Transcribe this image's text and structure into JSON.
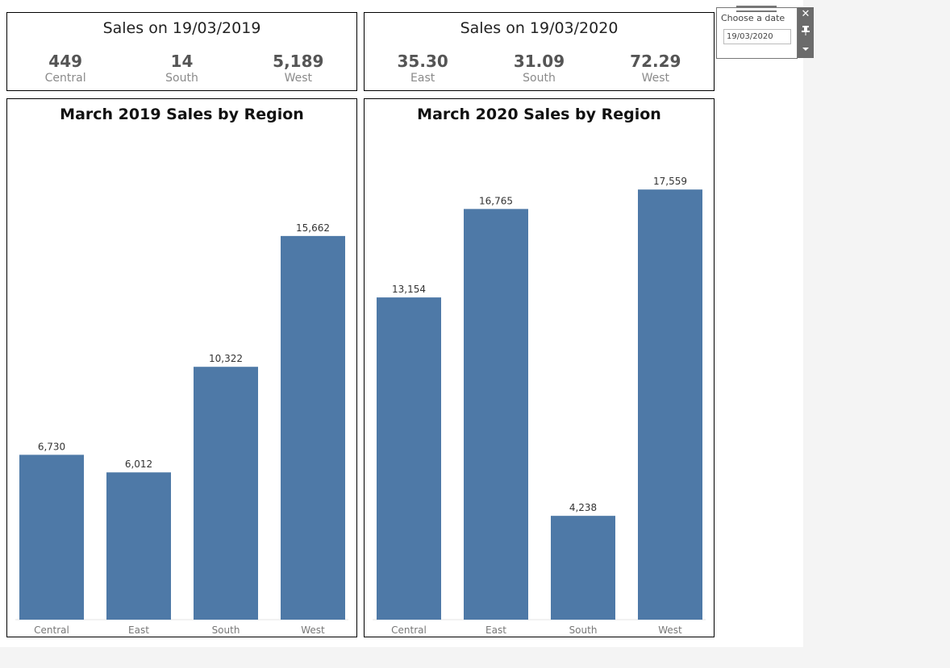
{
  "kpi": [
    {
      "title": "Sales on 19/03/2019",
      "items": [
        {
          "value": "449",
          "label": "Central"
        },
        {
          "value": "14",
          "label": "South"
        },
        {
          "value": "5,189",
          "label": "West"
        }
      ]
    },
    {
      "title": "Sales on 19/03/2020",
      "items": [
        {
          "value": "35.30",
          "label": "East"
        },
        {
          "value": "31.09",
          "label": "South"
        },
        {
          "value": "72.29",
          "label": "West"
        }
      ]
    }
  ],
  "chart_data": [
    {
      "type": "bar",
      "title": "March 2019 Sales by Region",
      "categories": [
        "Central",
        "East",
        "South",
        "West"
      ],
      "values": [
        6730,
        6012,
        10322,
        15662
      ],
      "value_labels": [
        "6,730",
        "6,012",
        "10,322",
        "15,662"
      ],
      "ylim": [
        0,
        20000
      ],
      "grid": false,
      "bar_color": "#4e79a7"
    },
    {
      "type": "bar",
      "title": "March 2020 Sales by Region",
      "categories": [
        "Central",
        "East",
        "South",
        "West"
      ],
      "values": [
        13154,
        16765,
        4238,
        17559
      ],
      "value_labels": [
        "13,154",
        "16,765",
        "4,238",
        "17,559"
      ],
      "ylim": [
        0,
        20000
      ],
      "grid": false,
      "bar_color": "#4e79a7"
    }
  ],
  "filter": {
    "label": "Choose a date",
    "value": "19/03/2020",
    "close_icon": "close-icon",
    "pin_icon": "pin-icon",
    "dropdown_icon": "chevron-down-icon"
  }
}
